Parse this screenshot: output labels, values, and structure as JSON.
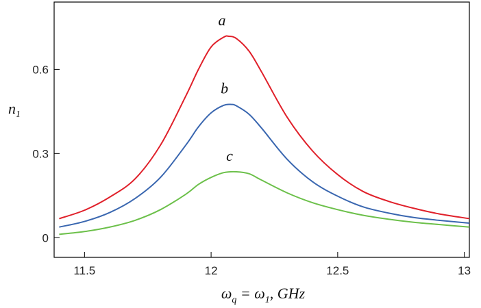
{
  "chart_data": {
    "type": "line",
    "xlabel": {
      "main": "ω",
      "sub": "q",
      "rest": " = ω",
      "sub2": "1",
      "tail": ", GHz"
    },
    "ylabel": {
      "main": "n",
      "sub": "1"
    },
    "xlim": [
      11.38,
      13.02
    ],
    "ylim": [
      -0.07,
      0.84
    ],
    "xticks": [
      {
        "value": 11.5,
        "label": "11.5"
      },
      {
        "value": 12,
        "label": "12"
      },
      {
        "value": 12.5,
        "label": "12.5"
      },
      {
        "value": 13,
        "label": "13"
      }
    ],
    "yticks": [
      {
        "value": 0,
        "label": "0"
      },
      {
        "value": 0.3,
        "label": "0.3"
      },
      {
        "value": 0.6,
        "label": "0.6"
      }
    ],
    "series": [
      {
        "label": "a",
        "color": "#e0202a",
        "x": [
          11.4,
          11.5,
          11.6,
          11.7,
          11.8,
          11.9,
          11.95,
          12.0,
          12.05,
          12.07,
          12.1,
          12.15,
          12.2,
          12.3,
          12.4,
          12.5,
          12.6,
          12.7,
          12.8,
          12.9,
          13.02
        ],
        "y": [
          0.068,
          0.098,
          0.145,
          0.21,
          0.33,
          0.505,
          0.6,
          0.68,
          0.715,
          0.718,
          0.71,
          0.665,
          0.59,
          0.43,
          0.31,
          0.225,
          0.165,
          0.13,
          0.105,
          0.085,
          0.068
        ]
      },
      {
        "label": "b",
        "color": "#3a67b0",
        "x": [
          11.4,
          11.5,
          11.6,
          11.7,
          11.8,
          11.9,
          11.95,
          12.0,
          12.05,
          12.08,
          12.1,
          12.15,
          12.2,
          12.3,
          12.4,
          12.5,
          12.6,
          12.7,
          12.8,
          12.9,
          13.02
        ],
        "y": [
          0.038,
          0.058,
          0.09,
          0.14,
          0.215,
          0.33,
          0.395,
          0.445,
          0.472,
          0.475,
          0.47,
          0.44,
          0.39,
          0.28,
          0.2,
          0.148,
          0.11,
          0.088,
          0.072,
          0.062,
          0.052
        ]
      },
      {
        "label": "c",
        "color": "#6cc04a",
        "x": [
          11.4,
          11.5,
          11.6,
          11.7,
          11.8,
          11.9,
          11.95,
          12.0,
          12.05,
          12.1,
          12.15,
          12.2,
          12.3,
          12.4,
          12.5,
          12.6,
          12.7,
          12.8,
          12.9,
          13.02
        ],
        "y": [
          0.012,
          0.022,
          0.038,
          0.062,
          0.1,
          0.155,
          0.19,
          0.215,
          0.232,
          0.235,
          0.228,
          0.205,
          0.16,
          0.125,
          0.1,
          0.08,
          0.066,
          0.055,
          0.047,
          0.038
        ]
      }
    ],
    "grid": false,
    "legend": "none"
  }
}
